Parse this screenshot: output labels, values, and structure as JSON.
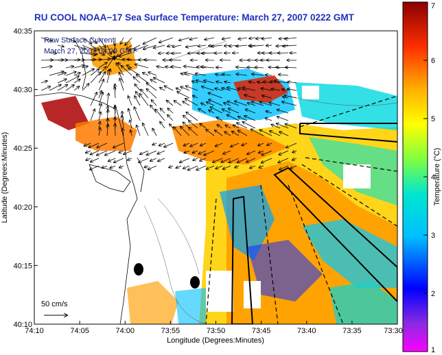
{
  "title": "RU COOL  NOAA−17  Sea Surface Temperature:  March 27, 2007 0222 GMT",
  "overlay": {
    "line1": "Raw Surface Current",
    "line2": "March 27, 2007 03:00 GMT"
  },
  "scale_arrow_label": "50 cm/s",
  "axes": {
    "xlabel": "Longitude (Degrees:Minutes)",
    "ylabel": "Latitude (Degrees:Minutes)",
    "x_ticks": [
      "74:10",
      "74:05",
      "74:00",
      "73:55",
      "73:50",
      "73:45",
      "73:40",
      "73:35",
      "73:30"
    ],
    "y_ticks": [
      "40:35",
      "40:30",
      "40:25",
      "40:20",
      "40:15",
      "40:10"
    ]
  },
  "colorbar": {
    "label": "Temperature (°C)",
    "ticks": [
      "7",
      "6",
      "5",
      "4",
      "3",
      "2",
      "1"
    ],
    "range": [
      1,
      7
    ]
  },
  "colors": {
    "land_line": "#000000",
    "title_color": "#1f2fbf",
    "overlay_color": "#1a237e"
  }
}
